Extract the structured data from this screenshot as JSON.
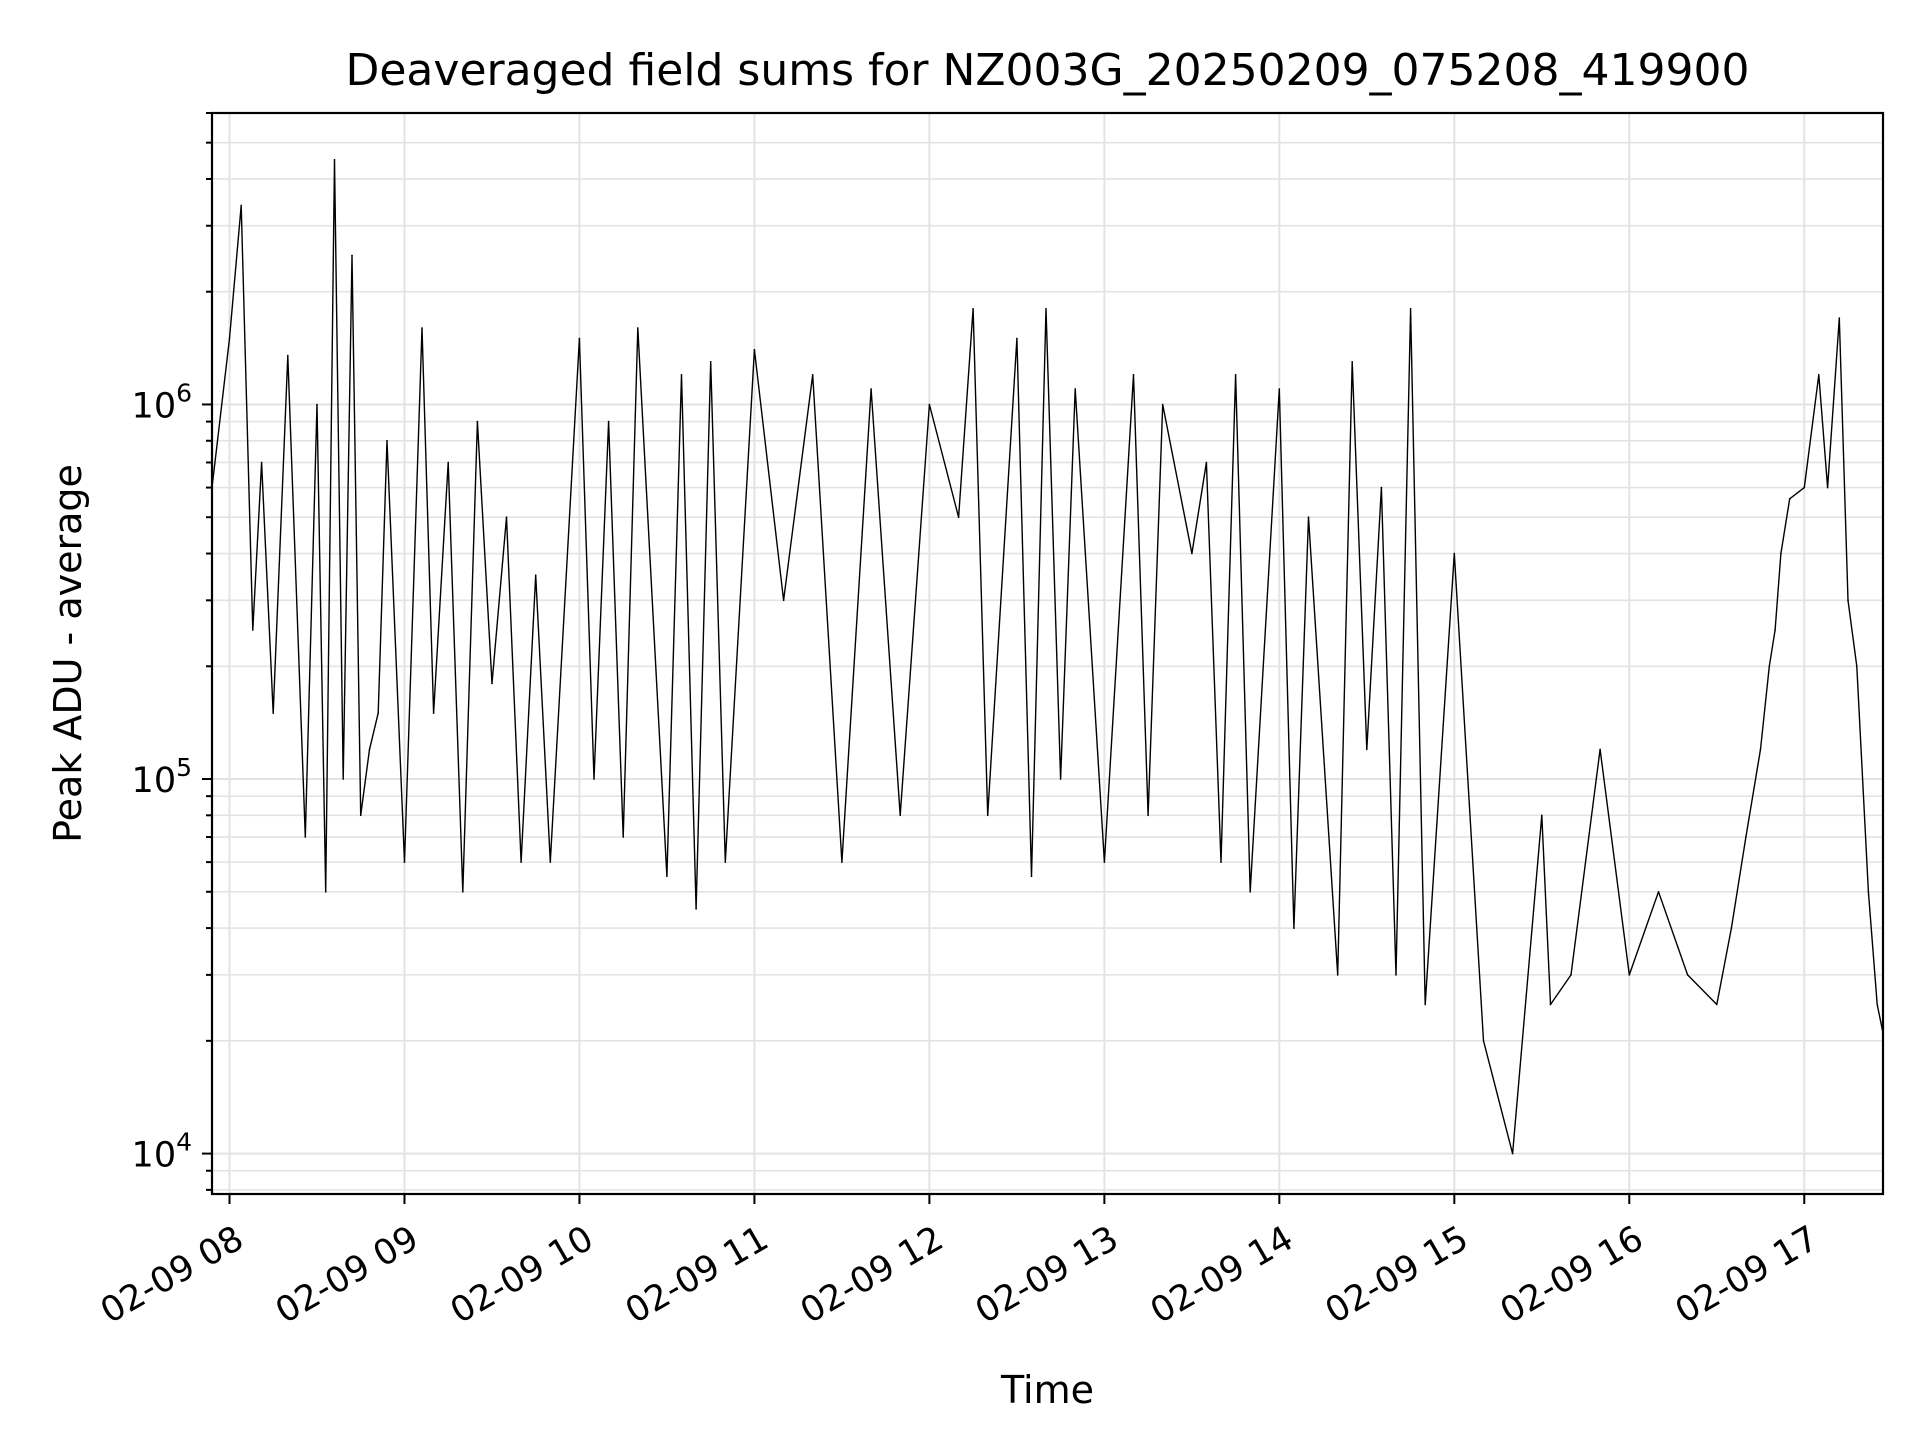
{
  "chart_data": {
    "type": "line",
    "title": "Deaveraged field sums for NZ003G_20250209_075208_419900",
    "xlabel": "Time",
    "ylabel": "Peak ADU - average",
    "yscale": "log",
    "grid": true,
    "line_color": "#000000",
    "grid_color": "#e3e3e3",
    "x_ticks": [
      "02-09 08",
      "02-09 09",
      "02-09 10",
      "02-09 11",
      "02-09 12",
      "02-09 13",
      "02-09 14",
      "02-09 15",
      "02-09 16",
      "02-09 17"
    ],
    "y_ticks": [
      {
        "value": 10000,
        "base": "10",
        "exp": "4"
      },
      {
        "value": 100000,
        "base": "10",
        "exp": "5"
      },
      {
        "value": 1000000,
        "base": "10",
        "exp": "6"
      }
    ],
    "xlim": [
      "02-09 07:54",
      "02-09 17:27"
    ],
    "ylim": [
      7800,
      6000000
    ],
    "series": [
      {
        "x": [
          "07:54",
          "08:00",
          "08:04",
          "08:08",
          "08:11",
          "08:15",
          "08:20",
          "08:26",
          "08:30",
          "08:33",
          "08:36",
          "08:39",
          "08:42",
          "08:45",
          "08:48",
          "08:51",
          "08:54",
          "09:00",
          "09:06",
          "09:10",
          "09:15",
          "09:20",
          "09:25",
          "09:30",
          "09:35",
          "09:40",
          "09:45",
          "09:50",
          "10:00",
          "10:05",
          "10:10",
          "10:15",
          "10:20",
          "10:30",
          "10:35",
          "10:40",
          "10:45",
          "10:50",
          "11:00",
          "11:10",
          "11:20",
          "11:30",
          "11:40",
          "11:50",
          "12:00",
          "12:10",
          "12:15",
          "12:20",
          "12:30",
          "12:35",
          "12:40",
          "12:45",
          "12:50",
          "13:00",
          "13:10",
          "13:15",
          "13:20",
          "13:30",
          "13:35",
          "13:40",
          "13:45",
          "13:50",
          "14:00",
          "14:05",
          "14:10",
          "14:20",
          "14:25",
          "14:30",
          "14:35",
          "14:40",
          "14:45",
          "14:50",
          "15:00",
          "15:10",
          "15:20",
          "15:30",
          "15:33",
          "15:40",
          "15:50",
          "16:00",
          "16:10",
          "16:20",
          "16:30",
          "16:35",
          "16:40",
          "16:45",
          "16:48",
          "16:50",
          "16:52",
          "16:55",
          "17:00",
          "17:05",
          "17:08",
          "17:12",
          "17:15",
          "17:18",
          "17:22",
          "17:25",
          "17:27"
        ],
        "y": [
          600000,
          1500000,
          3400000,
          250000,
          700000,
          150000,
          1350000,
          70000,
          1000000,
          50000,
          4500000,
          100000,
          2500000,
          80000,
          120000,
          150000,
          800000,
          60000,
          1600000,
          150000,
          700000,
          50000,
          900000,
          180000,
          500000,
          60000,
          350000,
          60000,
          1500000,
          100000,
          900000,
          70000,
          1600000,
          55000,
          1200000,
          45000,
          1300000,
          60000,
          1400000,
          300000,
          1200000,
          60000,
          1100000,
          80000,
          1000000,
          500000,
          1800000,
          80000,
          1500000,
          55000,
          1800000,
          100000,
          1100000,
          60000,
          1200000,
          80000,
          1000000,
          400000,
          700000,
          60000,
          1200000,
          50000,
          1100000,
          40000,
          500000,
          30000,
          1300000,
          120000,
          600000,
          30000,
          1800000,
          25000,
          400000,
          20000,
          10000,
          80000,
          25000,
          30000,
          120000,
          30000,
          50000,
          30000,
          25000,
          40000,
          70000,
          120000,
          200000,
          250000,
          400000,
          560000,
          600000,
          1200000,
          600000,
          1700000,
          300000,
          200000,
          50000,
          25000,
          21000
        ]
      }
    ]
  }
}
